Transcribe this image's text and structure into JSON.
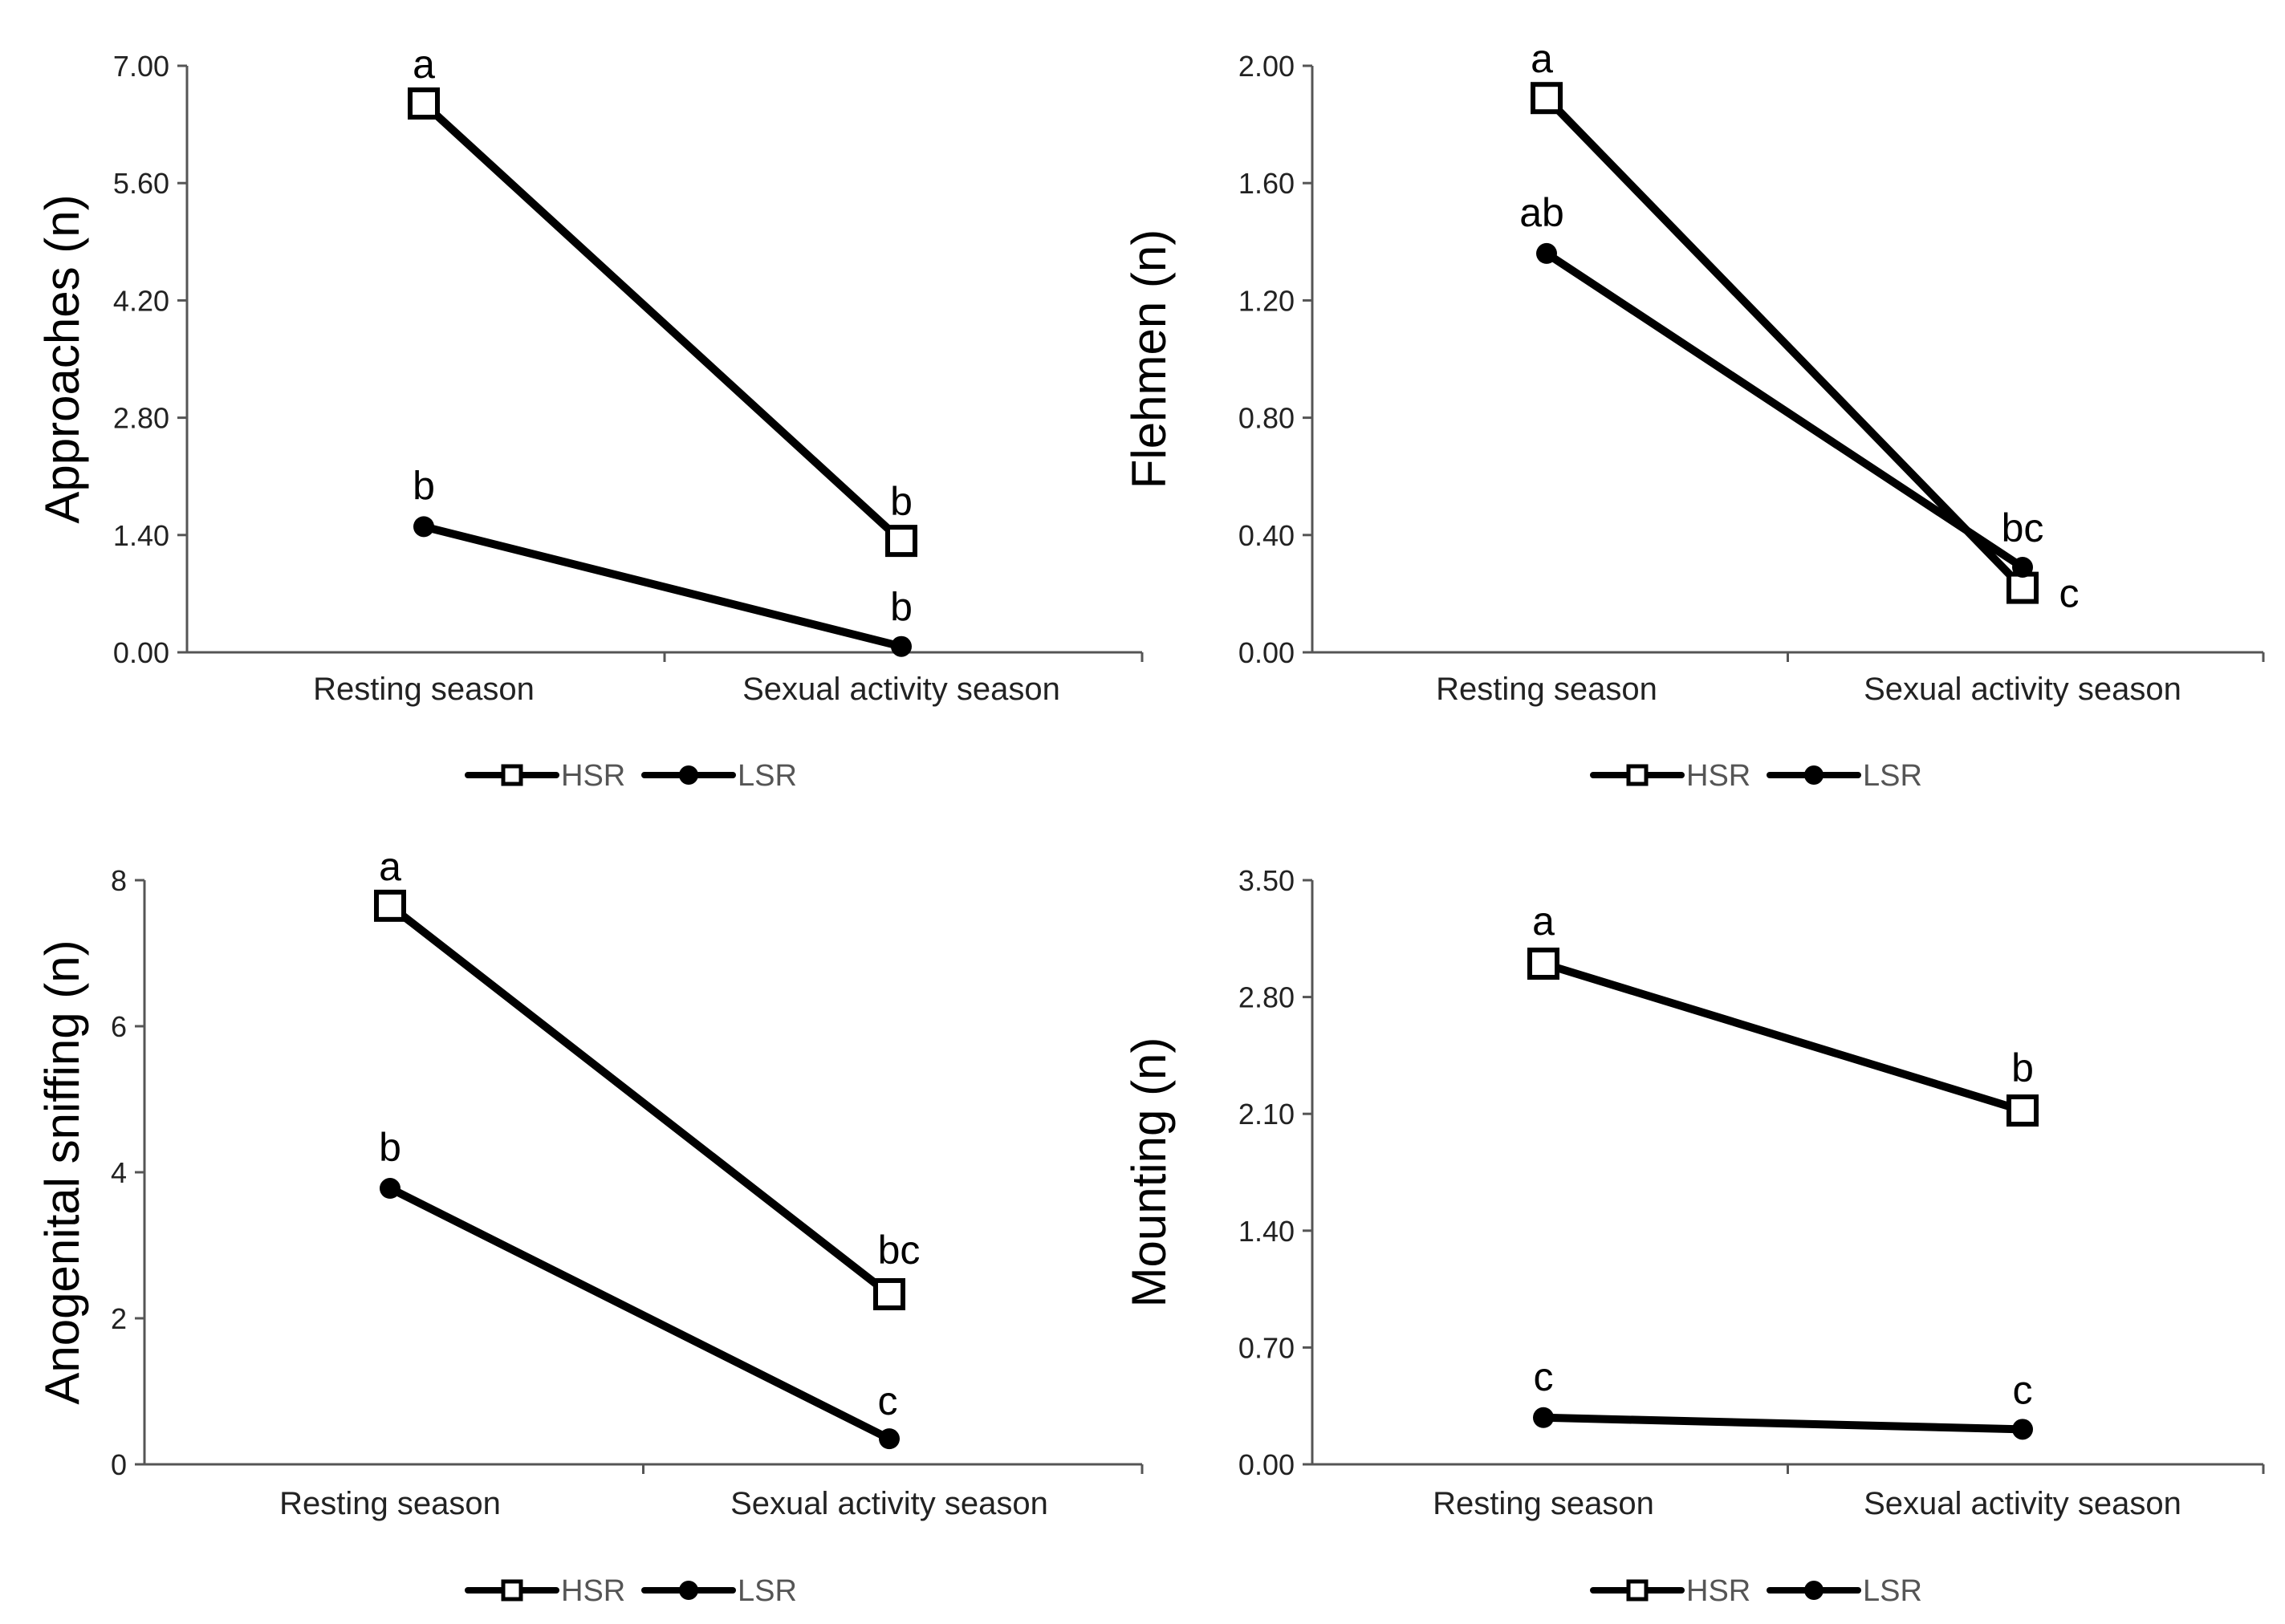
{
  "chart_data": [
    {
      "type": "line",
      "categories": [
        "Resting season",
        "Sexual activity season"
      ],
      "ylabel": "Approaches (n)",
      "ylim": [
        0,
        7
      ],
      "yticks": [
        "0.00",
        "1.40",
        "2.80",
        "4.20",
        "5.60",
        "7.00"
      ],
      "series": [
        {
          "name": "HSR",
          "marker": "square",
          "values": [
            6.55,
            1.33
          ],
          "letters": [
            "a",
            "b"
          ]
        },
        {
          "name": "LSR",
          "marker": "circle",
          "values": [
            1.5,
            0.07
          ],
          "letters": [
            "b",
            "b"
          ]
        }
      ],
      "legend": [
        "HSR",
        "LSR"
      ]
    },
    {
      "type": "line",
      "categories": [
        "Resting season",
        "Sexual activity season"
      ],
      "ylabel": "Flehmen (n)",
      "ylim": [
        0,
        2
      ],
      "yticks": [
        "0.00",
        "0.40",
        "0.80",
        "1.20",
        "1.60",
        "2.00"
      ],
      "series": [
        {
          "name": "HSR",
          "marker": "square",
          "values": [
            1.89,
            0.22
          ],
          "letters": [
            "a",
            "c"
          ]
        },
        {
          "name": "LSR",
          "marker": "circle",
          "values": [
            1.36,
            0.29
          ],
          "letters": [
            "ab",
            "bc"
          ]
        }
      ],
      "legend": [
        "HSR",
        "LSR"
      ]
    },
    {
      "type": "line",
      "categories": [
        "Resting season",
        "Sexual activity season"
      ],
      "ylabel": "Anogenital sniffing (n)",
      "ylim": [
        0,
        8
      ],
      "yticks": [
        "0",
        "2",
        "4",
        "6",
        "8"
      ],
      "series": [
        {
          "name": "HSR",
          "marker": "square",
          "values": [
            7.65,
            2.33
          ],
          "letters": [
            "a",
            "bc"
          ]
        },
        {
          "name": "LSR",
          "marker": "circle",
          "values": [
            3.78,
            0.35
          ],
          "letters": [
            "b",
            "c"
          ]
        }
      ],
      "legend": [
        "HSR",
        "LSR"
      ]
    },
    {
      "type": "line",
      "categories": [
        "Resting season",
        "Sexual activity season"
      ],
      "ylabel": "Mounting (n)",
      "ylim": [
        0,
        3.5
      ],
      "yticks": [
        "0.00",
        "0.70",
        "1.40",
        "2.10",
        "2.80",
        "3.50"
      ],
      "series": [
        {
          "name": "HSR",
          "marker": "square",
          "values": [
            3.0,
            2.12
          ],
          "letters": [
            "a",
            "b"
          ]
        },
        {
          "name": "LSR",
          "marker": "circle",
          "values": [
            0.28,
            0.21
          ],
          "letters": [
            "c",
            "c"
          ]
        }
      ],
      "legend": [
        "HSR",
        "LSR"
      ]
    }
  ]
}
